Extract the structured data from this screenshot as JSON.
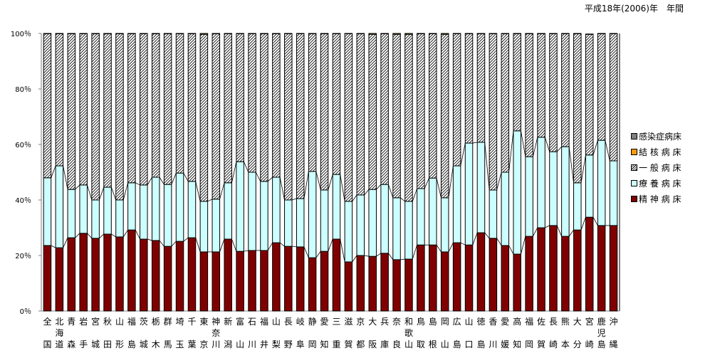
{
  "chart_data": {
    "type": "bar",
    "stacked": "percent",
    "title": "平成18年(2006)年　年間",
    "xlabel": "",
    "ylabel": "",
    "ylim": [
      0,
      100
    ],
    "yticks": [
      "0％",
      "20％",
      "40％",
      "60％",
      "80％",
      "100％"
    ],
    "legend_position": "right",
    "categories": [
      "全国",
      "北海道",
      "青森",
      "岩手",
      "宮城",
      "秋田",
      "山形",
      "福島",
      "茨城",
      "栃木",
      "群馬",
      "埼玉",
      "千葉",
      "東京",
      "神奈川",
      "新潟",
      "富山",
      "石川",
      "福井",
      "山梨",
      "長野",
      "岐阜",
      "静岡",
      "愛知",
      "三重",
      "滋賀",
      "京都",
      "大阪",
      "兵庫",
      "奈良",
      "和歌山",
      "鳥取",
      "島根",
      "岡山",
      "広島",
      "山口",
      "徳島",
      "香川",
      "愛媛",
      "高知",
      "福岡",
      "佐賀",
      "長崎",
      "熊本",
      "大分",
      "宮崎",
      "鹿児島",
      "沖縄"
    ],
    "series": [
      {
        "name": "精 神 病 床",
        "color": "#800000",
        "values": [
          23.6,
          22.8,
          26.4,
          28.0,
          26.2,
          27.7,
          26.7,
          29.2,
          25.9,
          25.4,
          23.3,
          25.1,
          26.4,
          21.3,
          21.3,
          25.9,
          21.5,
          21.8,
          21.8,
          24.6,
          23.3,
          23.1,
          19.2,
          21.5,
          25.9,
          17.7,
          20.0,
          19.7,
          20.8,
          18.5,
          18.7,
          23.8,
          23.8,
          21.3,
          24.6,
          23.8,
          28.2,
          26.2,
          23.6,
          20.5,
          26.9,
          30.0,
          30.8,
          26.9,
          29.2,
          33.8,
          30.8,
          30.8
        ]
      },
      {
        "name": "療 養 病 床",
        "color": "#ccffff",
        "values": [
          24.4,
          29.5,
          17.4,
          17.4,
          13.8,
          16.9,
          13.3,
          17.0,
          19.5,
          22.8,
          22.3,
          24.6,
          20.3,
          18.2,
          19.0,
          20.3,
          32.3,
          28.2,
          24.9,
          23.6,
          16.7,
          17.4,
          31.1,
          22.1,
          23.3,
          21.8,
          21.8,
          24.1,
          24.8,
          22.3,
          20.8,
          20.3,
          24.1,
          19.5,
          27.7,
          36.7,
          32.6,
          17.4,
          26.4,
          44.4,
          28.7,
          32.6,
          26.6,
          32.3,
          17.0,
          22.4,
          30.7,
          23.3
        ]
      },
      {
        "name": "一 般 病 床",
        "color": "#ffffff",
        "values": [
          51.9,
          47.6,
          56.1,
          54.5,
          59.9,
          55.3,
          59.9,
          53.7,
          54.5,
          51.7,
          54.3,
          50.2,
          53.2,
          60.2,
          59.6,
          53.7,
          46.1,
          49.9,
          53.2,
          51.7,
          59.9,
          59.4,
          49.6,
          56.3,
          50.7,
          60.4,
          58.1,
          55.9,
          54.3,
          58.9,
          60.2,
          55.8,
          52.0,
          58.9,
          47.6,
          39.4,
          39.1,
          56.3,
          49.9,
          35.0,
          44.3,
          37.3,
          42.5,
          40.7,
          53.7,
          43.5,
          38.4,
          45.8
        ]
      },
      {
        "name": "結 核 病 床",
        "color": "#ff9900",
        "values": [
          0.1,
          0.1,
          0.1,
          0.1,
          0.1,
          0.1,
          0.1,
          0.1,
          0.1,
          0.1,
          0.1,
          0.1,
          0.1,
          0.3,
          0.1,
          0.1,
          0.1,
          0.1,
          0.1,
          0.1,
          0.1,
          0.1,
          0.1,
          0.1,
          0.1,
          0.1,
          0.1,
          0.3,
          0.1,
          0.3,
          0.3,
          0.1,
          0.1,
          0.3,
          0.1,
          0.1,
          0.1,
          0.1,
          0.1,
          0.1,
          0.1,
          0.1,
          0.1,
          0.1,
          0.3,
          0.1,
          0.1,
          0.1
        ]
      },
      {
        "name": "感染症病床",
        "color": "#808080",
        "values": [
          0,
          0,
          0,
          0,
          0,
          0,
          0,
          0,
          0,
          0,
          0,
          0,
          0,
          0,
          0,
          0,
          0,
          0,
          0,
          0,
          0,
          0,
          0,
          0,
          0,
          0,
          0,
          0,
          0,
          0,
          0,
          0,
          0,
          0,
          0,
          0,
          0,
          0,
          0,
          0,
          0,
          0,
          0,
          0,
          0,
          0,
          0,
          0
        ]
      }
    ]
  }
}
